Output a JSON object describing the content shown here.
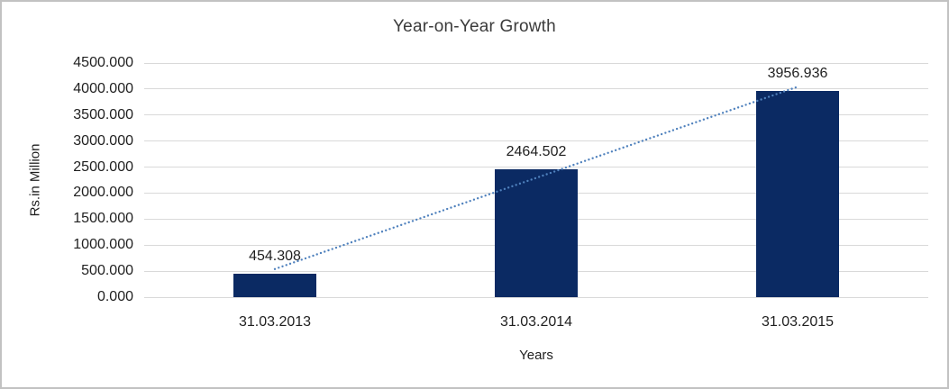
{
  "chart_data": {
    "type": "bar",
    "title": "Year-on-Year Growth",
    "xlabel": "Years",
    "ylabel": "Rs.in Million",
    "categories": [
      "31.03.2013",
      "31.03.2014",
      "31.03.2015"
    ],
    "values": [
      454.308,
      2464.502,
      3956.936
    ],
    "data_labels": [
      "454.308",
      "2464.502",
      "3956.936"
    ],
    "ylim": [
      0,
      4500
    ],
    "y_tick_step": 500,
    "y_ticks_top_to_bottom": [
      "4500.000",
      "4000.000",
      "3500.000",
      "3000.000",
      "2500.000",
      "2000.000",
      "1500.000",
      "1000.000",
      "500.000",
      "0.000"
    ],
    "grid": true,
    "legend": "none",
    "trendline": {
      "fit": "linear",
      "style": "dotted",
      "spans": "first-bar-center-to-last-bar-center"
    },
    "colors": {
      "bar": "#0b2a63",
      "trendline": "#4f81bd",
      "gridline": "#d9d9d9",
      "text": "#1f1f1f",
      "title": "#3b3b3b",
      "frame_border": "#c2c2c2",
      "background": "#ffffff"
    }
  }
}
